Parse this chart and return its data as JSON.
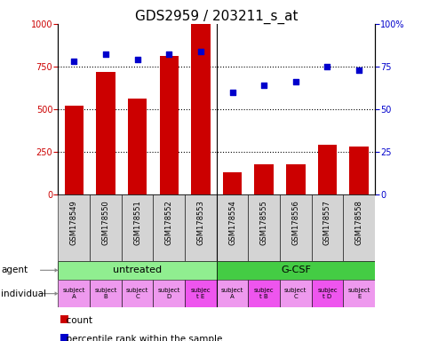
{
  "title": "GDS2959 / 203211_s_at",
  "samples": [
    "GSM178549",
    "GSM178550",
    "GSM178551",
    "GSM178552",
    "GSM178553",
    "GSM178554",
    "GSM178555",
    "GSM178556",
    "GSM178557",
    "GSM178558"
  ],
  "counts": [
    520,
    720,
    560,
    810,
    1000,
    130,
    175,
    175,
    290,
    280
  ],
  "percentiles": [
    78,
    82,
    79,
    82,
    84,
    60,
    64,
    66,
    75,
    73
  ],
  "bar_color": "#cc0000",
  "scatter_color": "#0000cc",
  "ylim_left": [
    0,
    1000
  ],
  "ylim_right": [
    0,
    100
  ],
  "yticks_left": [
    0,
    250,
    500,
    750,
    1000
  ],
  "yticks_right": [
    0,
    25,
    50,
    75,
    100
  ],
  "ytick_labels_right": [
    "0",
    "25",
    "50",
    "75",
    "100%"
  ],
  "agent_groups": [
    {
      "label": "untreated",
      "start": 0,
      "end": 5,
      "color": "#90ee90"
    },
    {
      "label": "G-CSF",
      "start": 5,
      "end": 10,
      "color": "#44cc44"
    }
  ],
  "individuals": [
    "subject\nA",
    "subject\nB",
    "subject\nC",
    "subject\nD",
    "subjec\nt E",
    "subject\nA",
    "subjec\nt B",
    "subject\nC",
    "subjec\nt D",
    "subject\nE"
  ],
  "highlight_individual": [
    4,
    6,
    8
  ],
  "bar_width": 0.6,
  "grid_yticks": [
    250,
    500,
    750
  ],
  "title_fontsize": 11,
  "tick_fontsize": 7,
  "axis_label_color_left": "#cc0000",
  "axis_label_color_right": "#0000cc"
}
